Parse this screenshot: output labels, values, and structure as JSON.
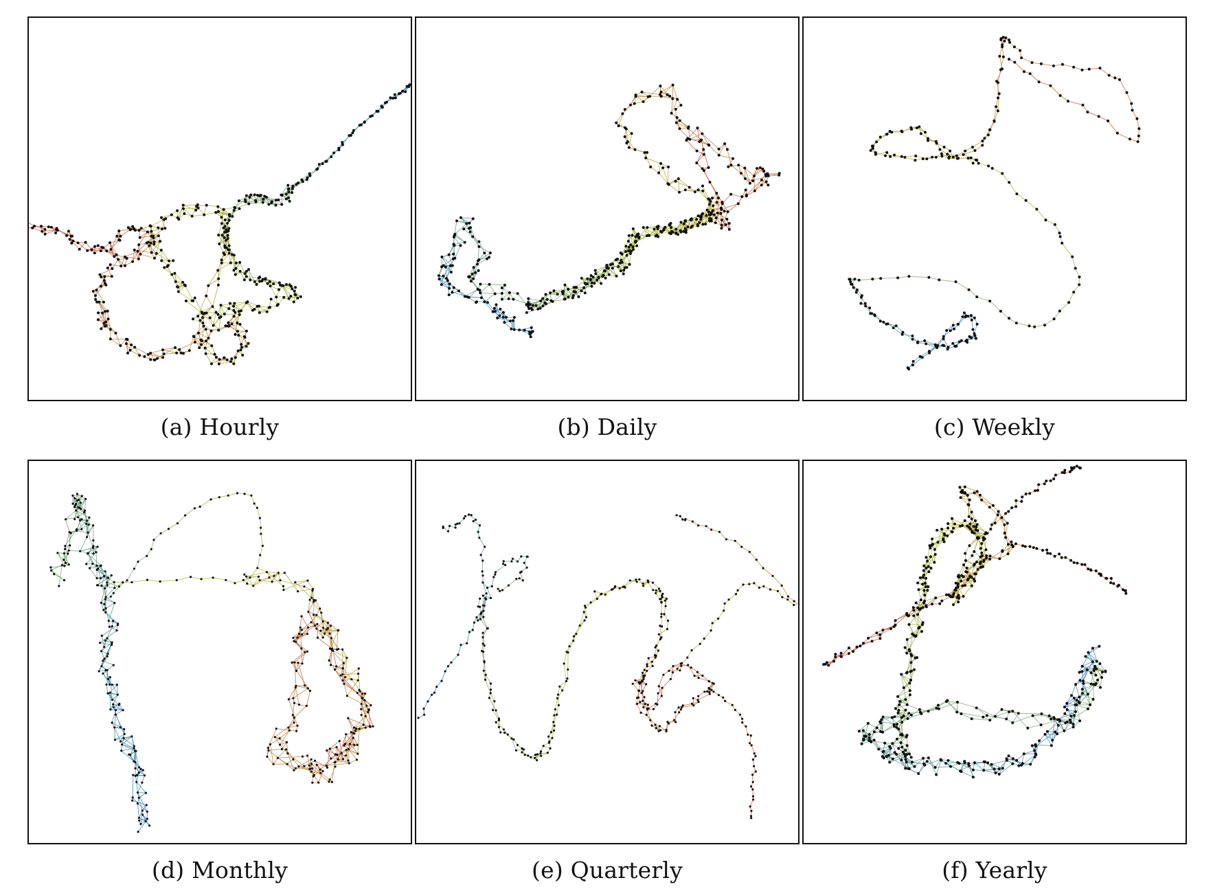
{
  "figure": {
    "panels": [
      {
        "id": "a",
        "caption": "(a) Hourly"
      },
      {
        "id": "b",
        "caption": "(b) Daily"
      },
      {
        "id": "c",
        "caption": "(c) Weekly"
      },
      {
        "id": "d",
        "caption": "(d) Monthly"
      },
      {
        "id": "e",
        "caption": "(e) Quarterly"
      },
      {
        "id": "f",
        "caption": "(f) Yearly"
      }
    ],
    "edge_palette": {
      "start": "#4a90c8",
      "middle": "#b8c24a",
      "end": "#d0604a"
    },
    "node_color": "#111111"
  }
}
